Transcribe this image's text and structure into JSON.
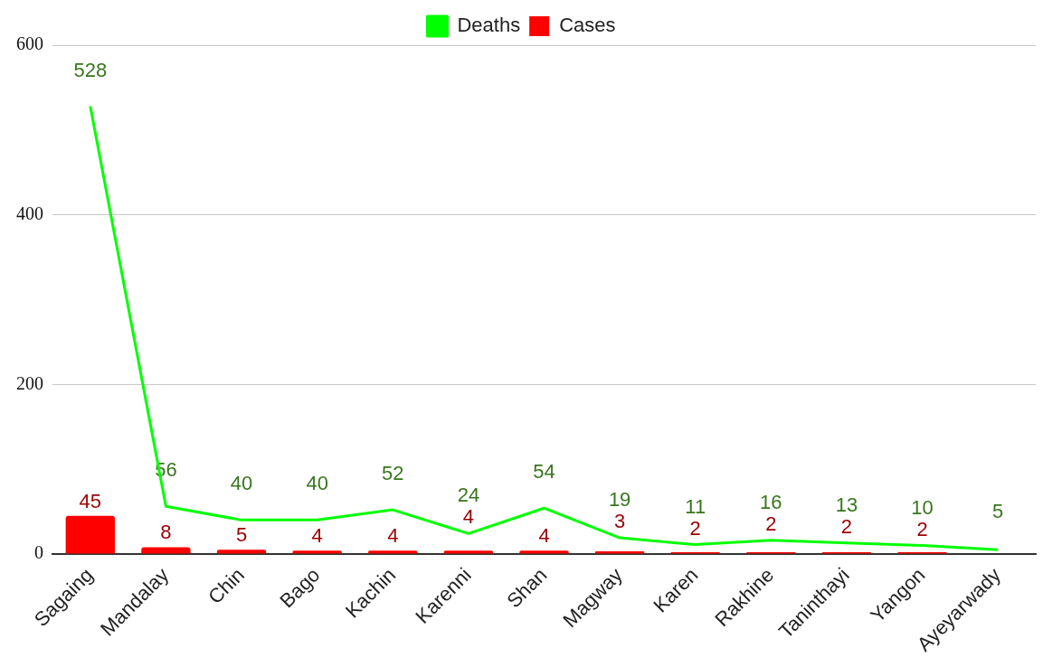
{
  "chart_data": {
    "type": "bar",
    "categories": [
      "Sagaing",
      "Mandalay",
      "Chin",
      "Bago",
      "Kachin",
      "Karenni",
      "Shan",
      "Magway",
      "Karen",
      "Rakhine",
      "Taninthayi",
      "Yangon",
      "Ayeyarwady"
    ],
    "series": [
      {
        "name": "Deaths",
        "type": "line",
        "color": "#00ff00",
        "values": [
          528,
          56,
          40,
          40,
          52,
          24,
          54,
          19,
          11,
          16,
          13,
          10,
          5
        ],
        "value_labels": [
          "528",
          "56",
          "40",
          "40",
          "52",
          "24",
          "54",
          "19",
          "11",
          "16",
          "13",
          "10",
          "5"
        ]
      },
      {
        "name": "Cases",
        "type": "bar",
        "color": "#ff0000",
        "values": [
          45,
          8,
          5,
          4,
          4,
          4,
          4,
          3,
          2,
          2,
          2,
          2,
          null
        ],
        "value_labels": [
          "45",
          "8",
          "5",
          "4",
          "4",
          "4",
          "4",
          "3",
          "2",
          "2",
          "2",
          "2",
          null
        ]
      }
    ],
    "ylim": [
      0,
      600
    ],
    "yticks": [
      0,
      200,
      400,
      600
    ],
    "grid": "y",
    "legend": "top",
    "marker": "none"
  }
}
